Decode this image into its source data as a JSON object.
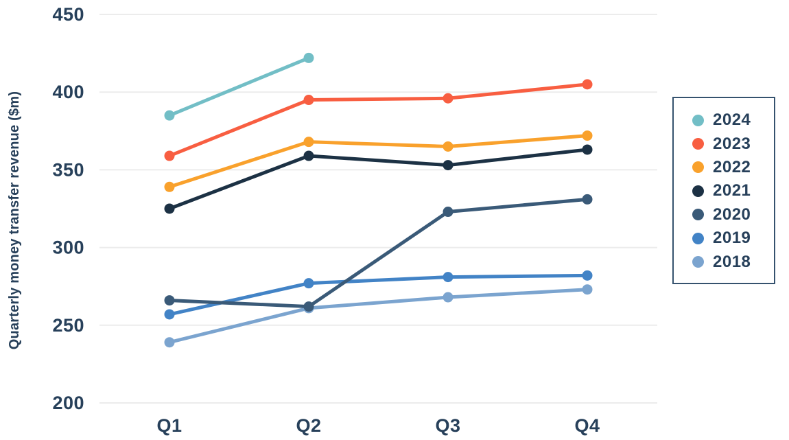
{
  "chart_data": {
    "type": "line",
    "title": "",
    "xlabel": "",
    "ylabel": "Quarterly money transfer revenue ($m)",
    "categories": [
      "Q1",
      "Q2",
      "Q3",
      "Q4"
    ],
    "series": [
      {
        "name": "2024",
        "color": "#72bec6",
        "values": [
          385,
          422,
          null,
          null
        ]
      },
      {
        "name": "2023",
        "color": "#f85e41",
        "values": [
          359,
          395,
          396,
          405
        ]
      },
      {
        "name": "2022",
        "color": "#f9a12c",
        "values": [
          339,
          368,
          365,
          372
        ]
      },
      {
        "name": "2021",
        "color": "#1c3144",
        "values": [
          325,
          359,
          353,
          363
        ]
      },
      {
        "name": "2020",
        "color": "#3a5a78",
        "values": [
          266,
          262,
          323,
          331
        ]
      },
      {
        "name": "2019",
        "color": "#4283c6",
        "values": [
          257,
          277,
          281,
          282
        ]
      },
      {
        "name": "2018",
        "color": "#7ba4cf",
        "values": [
          239,
          261,
          268,
          273
        ]
      }
    ],
    "y_ticks": [
      450,
      400,
      350,
      300,
      250,
      200
    ],
    "ylim": [
      200,
      450
    ],
    "grid": true,
    "legend_position": "right"
  },
  "colors": {
    "text": "#27405a",
    "grid": "#ececec",
    "legend_border": "#35526e",
    "background": "#ffffff"
  }
}
